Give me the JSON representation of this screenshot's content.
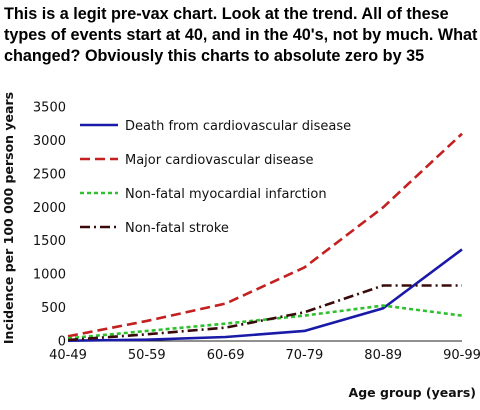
{
  "caption": "This is a legit pre-vax chart. Look at the trend.  All of these types of events start at 40, and in the 40's, not by much. What changed?  Obviously this charts to absolute zero by 35",
  "chart_data": {
    "type": "line",
    "title": "",
    "xlabel": "Age group (years)",
    "ylabel": "Incidence per 100 000 person years",
    "categories": [
      "40-49",
      "50-59",
      "60-69",
      "70-79",
      "80-89",
      "90-99"
    ],
    "ylim": [
      0,
      3500
    ],
    "yticks": [
      0,
      500,
      1000,
      1500,
      2000,
      2500,
      3000,
      3500
    ],
    "ytick_labels": [
      "0",
      "500",
      "1000",
      "1500",
      "2000",
      "2500",
      "3000",
      "3500"
    ],
    "grid": false,
    "legend_position": "top-left",
    "series": [
      {
        "name": "Death from cardiovascular disease",
        "color": "#1a1aa8",
        "dash": "solid",
        "values": [
          5,
          20,
          60,
          150,
          490,
          1370
        ]
      },
      {
        "name": "Major cardiovascular disease",
        "color": "#c42020",
        "dash": "dashed",
        "values": [
          70,
          300,
          560,
          1100,
          2000,
          3100
        ]
      },
      {
        "name": "Non-fatal myocardial infarction",
        "color": "#2ec02e",
        "dash": "dotted",
        "values": [
          40,
          150,
          260,
          380,
          530,
          380
        ]
      },
      {
        "name": "Non-fatal stroke",
        "color": "#3a0a0a",
        "dash": "dashdot",
        "values": [
          15,
          100,
          200,
          430,
          830,
          830
        ]
      }
    ]
  }
}
